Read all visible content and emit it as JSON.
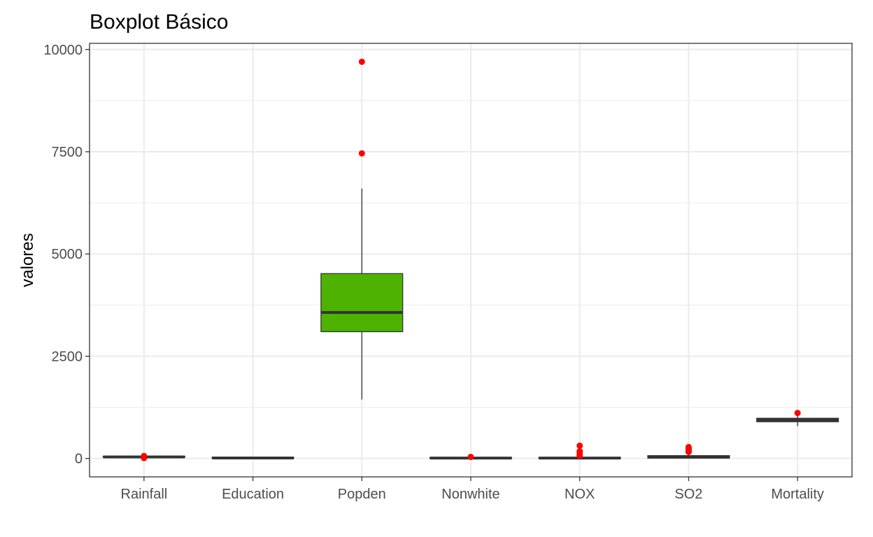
{
  "chart_data": {
    "type": "boxplot",
    "title": "Boxplot Básico",
    "xlabel": "",
    "ylabel": "valores",
    "ylim": [
      -450,
      10150
    ],
    "yticks": [
      0,
      2500,
      5000,
      7500,
      10000
    ],
    "ytick_labels": [
      "0",
      "2500",
      "5000",
      "7500",
      "10000"
    ],
    "grid": true,
    "legend": "none",
    "colors": {
      "box_fill": "#4db300",
      "box_fill_default": "#ffffff",
      "outlier": "#ff0000",
      "line": "#333333",
      "grid": "#ebebeb"
    },
    "categories": [
      "Rainfall",
      "Education",
      "Popden",
      "Nonwhite",
      "NOX",
      "SO2",
      "Mortality"
    ],
    "boxes": [
      {
        "category": "Rainfall",
        "whisker_low": 10,
        "q1": 32,
        "median": 38,
        "q3": 43,
        "whisker_high": 54,
        "outliers": [
          60,
          10
        ],
        "filled": false
      },
      {
        "category": "Education",
        "whisker_low": 9,
        "q1": 10.4,
        "median": 11,
        "q3": 11.5,
        "whisker_high": 12.3,
        "outliers": [],
        "filled": false
      },
      {
        "category": "Popden",
        "whisker_low": 1440,
        "q1": 3100,
        "median": 3570,
        "q3": 4520,
        "whisker_high": 6600,
        "outliers": [
          7460,
          9700
        ],
        "filled": true
      },
      {
        "category": "Nonwhite",
        "whisker_low": 1,
        "q1": 5,
        "median": 10,
        "q3": 15,
        "whisker_high": 30,
        "outliers": [
          38
        ],
        "filled": false
      },
      {
        "category": "NOX",
        "whisker_low": 1,
        "q1": 4,
        "median": 9,
        "q3": 23,
        "whisker_high": 50,
        "outliers": [
          66,
          105,
          170,
          175,
          311
        ],
        "filled": false
      },
      {
        "category": "SO2",
        "whisker_low": 1,
        "q1": 11,
        "median": 30,
        "q3": 69,
        "whisker_high": 144,
        "outliers": [
          161,
          170,
          180,
          208,
          230,
          246,
          278
        ],
        "filled": false
      },
      {
        "category": "Mortality",
        "whisker_low": 790,
        "q1": 898,
        "median": 944,
        "q3": 983,
        "whisker_high": 1100,
        "outliers": [
          1113
        ],
        "filled": false
      }
    ]
  }
}
